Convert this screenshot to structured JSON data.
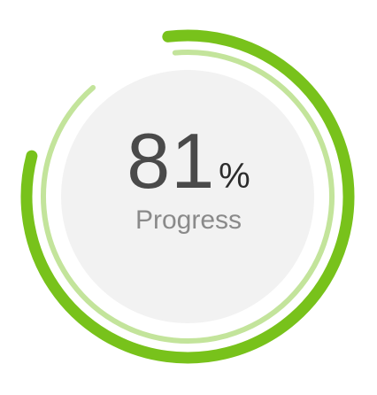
{
  "progress": {
    "value": 81,
    "value_text": "81",
    "unit": "%",
    "label": "Progress",
    "outer_arc_fraction": 0.81,
    "inner_arc_fraction": 0.9
  },
  "colors": {
    "outer_arc": "#78c21b",
    "inner_arc": "#c3e49b",
    "center_disc": "#f2f2f2",
    "value_text": "#4a4a4a",
    "label_text": "#8a8a8a"
  }
}
